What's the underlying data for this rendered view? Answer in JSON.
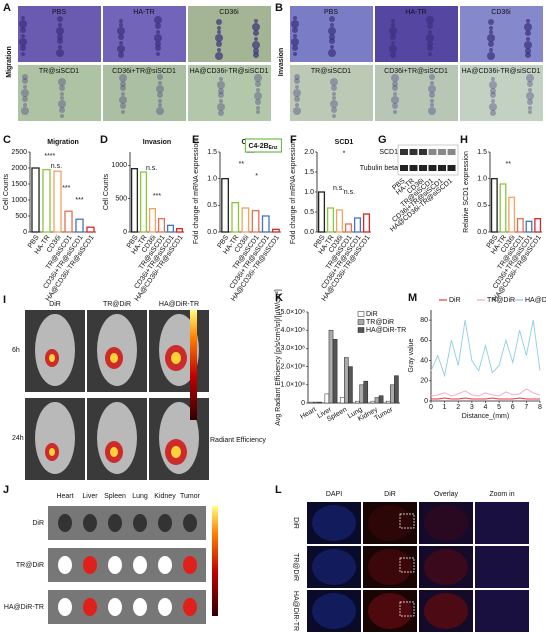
{
  "figure": {
    "panel_labels": [
      "A",
      "B",
      "C",
      "D",
      "E",
      "F",
      "G",
      "H",
      "I",
      "J",
      "K",
      "L",
      "M"
    ],
    "A": {
      "row_label": "Migration",
      "images": [
        "PBS",
        "HA-TR",
        "CD36i",
        "TR@siSCD1",
        "CD36i+TR@siSCD1",
        "HA@CD36i-TR@siSCD1"
      ]
    },
    "B": {
      "row_label": "Invasion",
      "images": [
        "PBS",
        "HA-TR",
        "CD36i",
        "TR@siSCD1",
        "CD36i+TR@siSCD1",
        "HA@CD36i-TR@siSCD1"
      ]
    },
    "G": {
      "bands": [
        "SCD1",
        "Tubulin beta"
      ],
      "lanes": [
        "PBS",
        "HA-TR",
        "CD36i",
        "TR@siSCD1",
        "CD36i+TR@siSCD1",
        "HA@CD36i-TR@siSCD1"
      ]
    },
    "I": {
      "columns": [
        "DiR",
        "TR@DiR",
        "HA@DiR-TR"
      ],
      "rows": [
        "6h",
        "24h"
      ],
      "colorbar_label": "Radiant Efficiency"
    },
    "J": {
      "organs": [
        "Heart",
        "Liver",
        "Spleen",
        "Lung",
        "Kidney",
        "Tumor"
      ],
      "rows": [
        "DiR",
        "TR@DiR",
        "HA@DiR-TR"
      ]
    },
    "L": {
      "columns": [
        "DAPI",
        "DiR",
        "Overlay",
        "Zoom in"
      ],
      "rows": [
        "DiR",
        "TR@DiR",
        "HA@DiR-TR"
      ]
    }
  },
  "chart_data": [
    {
      "type": "bar",
      "title": "Migration",
      "ylabel": "Cell Counts",
      "categories": [
        "PBS",
        "HA-TR",
        "CD36i",
        "TR@siSCD1",
        "CD36i+TR@siSCD1",
        "HA@CD36i-TR@siSCD1"
      ],
      "values": [
        2000,
        1950,
        1900,
        650,
        400,
        150
      ],
      "colors": [
        "#222222",
        "#8cc63f",
        "#f4a261",
        "#e76f51",
        "#4472c4",
        "#d62728"
      ],
      "ylim": [
        0,
        2500
      ],
      "yticks": [
        0,
        500,
        1000,
        1500,
        2000,
        2500
      ],
      "annotations": [
        "****",
        "n.s.",
        "***",
        "***"
      ]
    },
    {
      "type": "bar",
      "title": "Invasion",
      "ylabel": "Cell Counts",
      "categories": [
        "PBS",
        "HA-TR",
        "CD36i",
        "TR@siSCD1",
        "CD36i+TR@siSCD1",
        "HA@CD36i-TR@siSCD1"
      ],
      "values": [
        950,
        900,
        350,
        200,
        100,
        50
      ],
      "colors": [
        "#222222",
        "#8cc63f",
        "#f4a261",
        "#e76f51",
        "#4472c4",
        "#d62728"
      ],
      "ylim": [
        0,
        1200
      ],
      "yticks": [
        0,
        500,
        1000
      ],
      "annotations": [
        "n.s.",
        "***"
      ]
    },
    {
      "type": "bar",
      "title": "CD36",
      "ylabel": "Fold change of mRNA expression",
      "categories": [
        "PBS",
        "HA-TR",
        "CD36i",
        "TR@siSCD1",
        "CD36i+TR@siSCD1",
        "HA@CD36i-TR@siSCD1"
      ],
      "values": [
        1.0,
        0.55,
        0.45,
        0.4,
        0.3,
        0.05
      ],
      "colors": [
        "#222222",
        "#8cc63f",
        "#f4a261",
        "#e76f51",
        "#4472c4",
        "#d62728"
      ],
      "ylim": [
        0,
        1.5
      ],
      "yticks": [
        {
          "value": 0,
          "label": "0.0"
        },
        0.5,
        {
          "value": 1,
          "label": "1.0"
        },
        1.5
      ],
      "annotations": [
        "***",
        "**",
        "*"
      ],
      "inset_label": {
        "main": "C4-2B",
        "sub": "Enz"
      }
    },
    {
      "type": "bar",
      "title": "SCD1",
      "ylabel": "Fold change of mRNA expression",
      "categories": [
        "PBS",
        "HA-TR",
        "CD36i",
        "TR@siSCD1",
        "CD36i+TR@siSCD1",
        "HA@CD36i-TR@siSCD1"
      ],
      "values": [
        1.0,
        0.6,
        0.55,
        0.2,
        0.35,
        0.45
      ],
      "colors": [
        "#222222",
        "#8cc63f",
        "#f4a261",
        "#e76f51",
        "#4472c4",
        "#d62728"
      ],
      "ylim": [
        0,
        2.0
      ],
      "yticks": [
        {
          "value": 0,
          "label": "0.0"
        },
        0.5,
        {
          "value": 1,
          "label": "1.0"
        },
        1.5,
        {
          "value": 2,
          "label": "2.0"
        }
      ],
      "annotations": [
        "*",
        "n.s.",
        "n.s."
      ]
    },
    {
      "type": "bar",
      "ylabel": "Relative SCD1 expression",
      "categories": [
        "PBS",
        "HA-TR",
        "CD36i",
        "TR@siSCD1",
        "CD36i+TR@siSCD1",
        "HA@CD36i-TR@siSCD1"
      ],
      "values": [
        1.0,
        0.9,
        0.65,
        0.25,
        0.2,
        0.25
      ],
      "colors": [
        "#222222",
        "#8cc63f",
        "#f4a261",
        "#e76f51",
        "#4472c4",
        "#d62728"
      ],
      "ylim": [
        0,
        1.5
      ],
      "yticks": [
        {
          "value": 0,
          "label": "0.0"
        },
        0.5,
        {
          "value": 1,
          "label": "1.0"
        },
        1.5
      ],
      "annotations": [
        "**"
      ]
    },
    {
      "type": "bar",
      "ylabel": "Avg Radiant Efficiency [p/s/cm²/sr]/[µW/cm²]",
      "categories": [
        "Heart",
        "Liver",
        "Spleen",
        "Lung",
        "Kidney",
        "Tumor"
      ],
      "series": [
        {
          "name": "DiR",
          "color": "#ffffff",
          "values": [
            5000000,
            50000000,
            30000000,
            10000000,
            10000000,
            10000000
          ]
        },
        {
          "name": "TR@DiR",
          "color": "#aaaaaa",
          "values": [
            5000000,
            400000000,
            250000000,
            100000000,
            30000000,
            100000000
          ]
        },
        {
          "name": "HA@DiR-TR",
          "color": "#555555",
          "values": [
            5000000,
            350000000,
            200000000,
            120000000,
            40000000,
            150000000
          ]
        }
      ],
      "ylim": [
        0,
        500000000
      ],
      "yticks": [
        0,
        {
          "value": 100000000,
          "label": "1.0×10⁸"
        },
        {
          "value": 200000000,
          "label": "2.0×10⁸"
        },
        {
          "value": 300000000,
          "label": "3.0×10⁸"
        },
        {
          "value": 400000000,
          "label": "4.0×10⁸"
        },
        {
          "value": 500000000,
          "label": "5.0×10⁸"
        }
      ],
      "annotations": []
    },
    {
      "type": "line",
      "xlabel": "Distance_(mm)",
      "ylabel": "Gray value",
      "x": [
        0,
        0.5,
        1,
        1.5,
        2,
        2.5,
        3,
        3.5,
        4,
        4.5,
        5,
        5.5,
        6,
        6.5,
        7,
        7.5,
        8
      ],
      "series": [
        {
          "name": "DiR",
          "color": "#e8374a",
          "values": [
            2,
            2,
            3,
            2,
            2,
            3,
            2,
            2,
            2,
            3,
            2,
            2,
            2,
            3,
            2,
            2,
            2
          ]
        },
        {
          "name": "TR@DiR",
          "color": "#f4a6c0",
          "values": [
            5,
            6,
            8,
            5,
            7,
            10,
            6,
            5,
            8,
            6,
            5,
            9,
            6,
            7,
            12,
            8,
            6
          ]
        },
        {
          "name": "HA@DiR-TR",
          "color": "#8ecfe0",
          "values": [
            30,
            45,
            25,
            60,
            35,
            80,
            40,
            30,
            55,
            28,
            35,
            60,
            38,
            70,
            45,
            80,
            30
          ]
        }
      ],
      "xlim": [
        0,
        8
      ],
      "xticks": [
        0,
        1,
        2,
        3,
        4,
        5,
        6,
        7,
        8
      ],
      "ylim": [
        0,
        90
      ],
      "yticks": [
        0,
        20,
        40,
        60,
        80
      ]
    }
  ]
}
